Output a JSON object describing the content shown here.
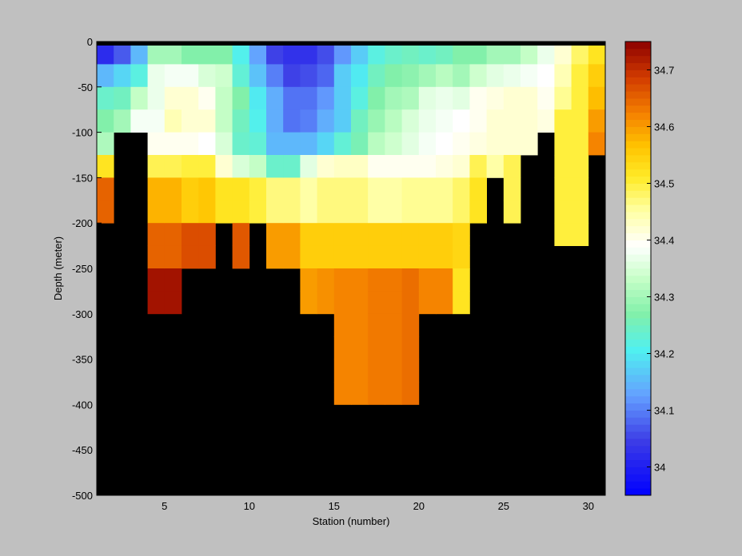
{
  "chart_data": {
    "type": "heatmap",
    "xlabel": "Station (number)",
    "ylabel": "Depth (meter)",
    "xlim": [
      1,
      31
    ],
    "ylim": [
      -500,
      0
    ],
    "x_ticks": [
      5,
      10,
      15,
      20,
      25,
      30
    ],
    "y_ticks": [
      0,
      -50,
      -100,
      -150,
      -200,
      -250,
      -300,
      -350,
      -400,
      -450,
      -500
    ],
    "x_step": 1,
    "y_step": 25,
    "no_data_color": "#000000",
    "colorbar": {
      "range": [
        33.95,
        34.75
      ],
      "ticks": [
        34,
        34.1,
        34.2,
        34.3,
        34.4,
        34.5,
        34.6,
        34.7
      ],
      "colormap": "jet-white-center"
    },
    "columns": [
      {
        "station": 1,
        "values": [
          34.02,
          34.15,
          34.24,
          34.27,
          34.31,
          34.52,
          34.65,
          34.65
        ]
      },
      {
        "station": 2,
        "values": [
          34.07,
          34.18,
          34.25,
          34.3
        ]
      },
      {
        "station": 3,
        "values": [
          34.15,
          34.22,
          34.33,
          34.38
        ]
      },
      {
        "station": 4,
        "values": [
          34.3,
          34.37,
          34.37,
          34.38,
          34.4,
          34.49,
          34.58,
          34.58,
          34.65,
          34.65,
          34.73,
          34.73
        ]
      },
      {
        "station": 5,
        "values": [
          34.3,
          34.38,
          34.42,
          34.44,
          34.4,
          34.49,
          34.58,
          34.58,
          34.65,
          34.65,
          34.73,
          34.73
        ]
      },
      {
        "station": 6,
        "values": [
          34.27,
          34.38,
          34.42,
          34.42,
          34.4,
          34.5,
          34.55,
          34.55,
          34.67,
          34.67
        ]
      },
      {
        "station": 7,
        "values": [
          34.27,
          34.35,
          34.4,
          34.42,
          34.39,
          34.5,
          34.56,
          34.56,
          34.67,
          34.67
        ]
      },
      {
        "station": 8,
        "values": [
          34.27,
          34.34,
          34.33,
          34.33,
          34.35,
          34.42,
          34.52,
          34.52
        ]
      },
      {
        "station": 9,
        "values": [
          34.21,
          34.23,
          34.27,
          34.25,
          34.24,
          34.35,
          34.52,
          34.52,
          34.66,
          34.66
        ]
      },
      {
        "station": 10,
        "values": [
          34.13,
          34.16,
          34.2,
          34.21,
          34.23,
          34.33,
          34.5,
          34.5
        ]
      },
      {
        "station": 11,
        "values": [
          34.05,
          34.1,
          34.14,
          34.14,
          34.15,
          34.24,
          34.47,
          34.47,
          34.6,
          34.6
        ]
      },
      {
        "station": 12,
        "values": [
          34.03,
          34.05,
          34.09,
          34.09,
          34.15,
          34.24,
          34.47,
          34.47,
          34.6,
          34.6
        ]
      },
      {
        "station": 13,
        "values": [
          34.03,
          34.06,
          34.09,
          34.1,
          34.15,
          34.36,
          34.45,
          34.45,
          34.55,
          34.55,
          34.6,
          34.6
        ]
      },
      {
        "station": 14,
        "values": [
          34.06,
          34.08,
          34.12,
          34.14,
          34.18,
          34.42,
          34.47,
          34.47,
          34.55,
          34.55,
          34.61,
          34.61
        ]
      },
      {
        "station": 15,
        "values": [
          34.12,
          34.17,
          34.17,
          34.17,
          34.23,
          34.43,
          34.47,
          34.47,
          34.55,
          34.55,
          34.62,
          34.62,
          34.62,
          34.62,
          34.62,
          34.62
        ]
      },
      {
        "station": 16,
        "values": [
          34.17,
          34.2,
          34.22,
          34.25,
          34.26,
          34.43,
          34.47,
          34.47,
          34.55,
          34.55,
          34.62,
          34.62,
          34.62,
          34.62,
          34.62,
          34.62
        ]
      },
      {
        "station": 17,
        "values": [
          34.22,
          34.25,
          34.27,
          34.29,
          34.32,
          34.4,
          34.45,
          34.45,
          34.55,
          34.55,
          34.63,
          34.63,
          34.63,
          34.63,
          34.63,
          34.63
        ]
      },
      {
        "station": 18,
        "values": [
          34.24,
          34.27,
          34.3,
          34.32,
          34.34,
          34.4,
          34.45,
          34.45,
          34.55,
          34.55,
          34.63,
          34.63,
          34.63,
          34.63,
          34.63,
          34.63
        ]
      },
      {
        "station": 19,
        "values": [
          34.25,
          34.28,
          34.31,
          34.35,
          34.36,
          34.4,
          34.46,
          34.46,
          34.55,
          34.55,
          34.64,
          34.64,
          34.64,
          34.64,
          34.64,
          34.64
        ]
      },
      {
        "station": 20,
        "values": [
          34.24,
          34.3,
          34.36,
          34.37,
          34.38,
          34.4,
          34.46,
          34.46,
          34.55,
          34.55,
          34.62,
          34.62
        ]
      },
      {
        "station": 21,
        "values": [
          34.25,
          34.32,
          34.37,
          34.38,
          34.39,
          34.41,
          34.46,
          34.46,
          34.55,
          34.55,
          34.62,
          34.62
        ]
      },
      {
        "station": 22,
        "values": [
          34.27,
          34.3,
          34.36,
          34.39,
          34.4,
          34.42,
          34.48,
          34.48,
          34.54,
          34.54,
          34.52,
          34.52
        ]
      },
      {
        "station": 23,
        "values": [
          34.27,
          34.34,
          34.4,
          34.4,
          34.41,
          34.49,
          34.52,
          34.52
        ]
      },
      {
        "station": 24,
        "values": [
          34.3,
          34.36,
          34.41,
          34.42,
          34.42,
          34.45
        ]
      },
      {
        "station": 25,
        "values": [
          34.3,
          34.37,
          34.42,
          34.42,
          34.42,
          34.49,
          34.49,
          34.49
        ]
      },
      {
        "station": 26,
        "values": [
          34.33,
          34.38,
          34.42,
          34.42,
          34.42
        ]
      },
      {
        "station": 27,
        "values": [
          34.37,
          34.39,
          34.4,
          34.41
        ]
      },
      {
        "station": 28,
        "values": [
          34.42,
          34.44,
          34.46,
          34.5,
          34.5,
          34.5,
          34.5,
          34.5,
          34.5
        ]
      },
      {
        "station": 29,
        "values": [
          34.48,
          34.5,
          34.5,
          34.5,
          34.5,
          34.5,
          34.5,
          34.5,
          34.5
        ]
      },
      {
        "station": 30,
        "values": [
          34.52,
          34.55,
          34.57,
          34.6,
          34.62
        ]
      }
    ]
  }
}
